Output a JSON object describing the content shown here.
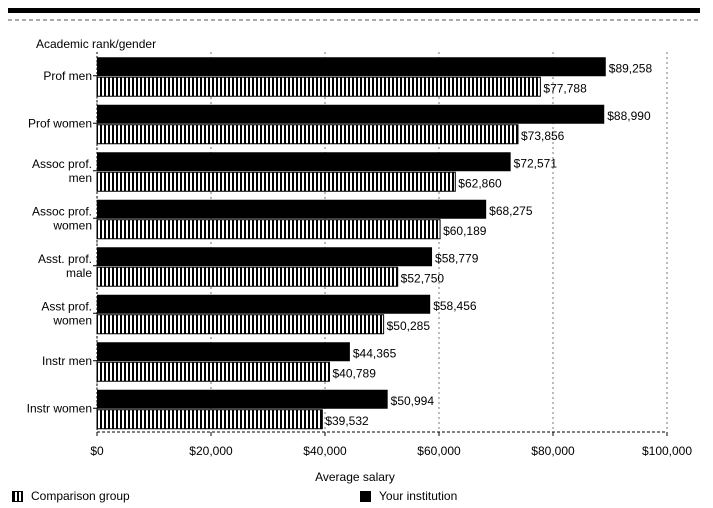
{
  "chart_data": {
    "type": "bar",
    "orientation": "horizontal",
    "title": "Academic rank/gender",
    "xlabel": "Average salary",
    "xlim": [
      0,
      100000
    ],
    "xticks": [
      "$0",
      "$20,000",
      "$40,000",
      "$60,000",
      "$80,000",
      "$100,000"
    ],
    "grid": true,
    "legend_placement": "bottom",
    "categories": [
      "Prof men",
      "Prof women",
      "Assoc prof. men",
      "Assoc prof. women",
      "Asst. prof. male",
      "Asst prof. women",
      "Instr men",
      "Instr women"
    ],
    "category_lines": [
      [
        "Prof men"
      ],
      [
        "Prof women"
      ],
      [
        "Assoc prof.",
        "men"
      ],
      [
        "Assoc prof.",
        "women"
      ],
      [
        "Asst. prof.",
        "male"
      ],
      [
        "Asst prof.",
        "women"
      ],
      [
        "Instr men"
      ],
      [
        "Instr women"
      ]
    ],
    "series": [
      {
        "name": "Your institution",
        "values": [
          89258,
          88990,
          72571,
          68275,
          58779,
          58456,
          44365,
          50994
        ],
        "labels": [
          "$89,258",
          "$88,990",
          "$72,571",
          "$68,275",
          "$58,779",
          "$58,456",
          "$44,365",
          "$50,994"
        ]
      },
      {
        "name": "Comparison group",
        "values": [
          77788,
          73856,
          62860,
          60189,
          52750,
          50285,
          40789,
          39532
        ],
        "labels": [
          "$77,788",
          "$73,856",
          "$62,860",
          "$60,189",
          "$52,750",
          "$50,285",
          "$40,789",
          "$39,532"
        ]
      }
    ],
    "colors": {
      "your_institution": "#000000",
      "comparison_group": "#000000"
    }
  },
  "legend": {
    "comparison_label": "Comparison group",
    "institution_label": "Your institution"
  }
}
